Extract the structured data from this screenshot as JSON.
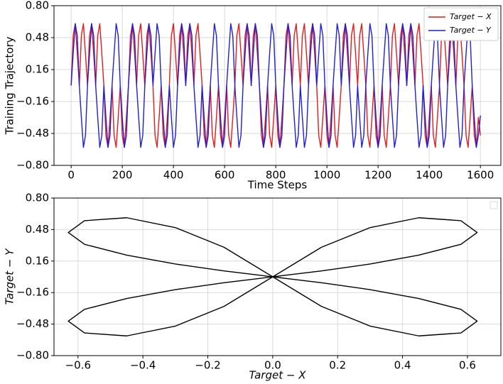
{
  "chart_data": [
    {
      "type": "line",
      "xlabel": "Time Steps",
      "ylabel": "Training Trajectory",
      "xlim": [
        -67,
        1680
      ],
      "ylim": [
        -0.8,
        0.8
      ],
      "xticks": [
        0,
        200,
        400,
        600,
        800,
        1000,
        1200,
        1400,
        1600
      ],
      "yticks": [
        {
          "value": -0.8,
          "label": "−0.80"
        },
        {
          "value": -0.48,
          "label": "−0.48"
        },
        {
          "value": -0.16,
          "label": "−0.16"
        },
        {
          "value": 0.16,
          "label": "0.16"
        },
        {
          "value": 0.48,
          "label": "0.48"
        },
        {
          "value": 0.8,
          "label": "0.80"
        }
      ],
      "grid": true,
      "legend": "upper right",
      "x": [
        0,
        8,
        16,
        24,
        32,
        40,
        48,
        56,
        64,
        72,
        80,
        88,
        96,
        104,
        112,
        120,
        128,
        136,
        144,
        152,
        160,
        168,
        176,
        184,
        192,
        200,
        208,
        216,
        224,
        232,
        240,
        248,
        256,
        264,
        272,
        280,
        288,
        296,
        304,
        312,
        320,
        328,
        336,
        344,
        352,
        360,
        368,
        376,
        384,
        392,
        400,
        408,
        416,
        424,
        432,
        440,
        448,
        456,
        464,
        472,
        480,
        488,
        496,
        504,
        512,
        520,
        528,
        536,
        544,
        552,
        560,
        568,
        576,
        584,
        592,
        600,
        608,
        616,
        624,
        632,
        640,
        648,
        656,
        664,
        672,
        680,
        688,
        696,
        704,
        712,
        720,
        728,
        736,
        744,
        752,
        760,
        768,
        776,
        784,
        792,
        800,
        808,
        816,
        824,
        832,
        840,
        848,
        856,
        864,
        872,
        880,
        888,
        896,
        904,
        912,
        920,
        928,
        936,
        944,
        952,
        960,
        968,
        976,
        984,
        992,
        1000,
        1008,
        1016,
        1024,
        1032,
        1040,
        1048,
        1056,
        1064,
        1072,
        1080,
        1088,
        1096,
        1104,
        1112,
        1120,
        1128,
        1136,
        1144,
        1152,
        1160,
        1168,
        1176,
        1184,
        1192,
        1200,
        1208,
        1216,
        1224,
        1232,
        1240,
        1248,
        1256,
        1264,
        1272,
        1280,
        1288,
        1296,
        1304,
        1312,
        1320,
        1328,
        1336,
        1344,
        1352,
        1360,
        1368,
        1376,
        1384,
        1392,
        1400,
        1408,
        1416,
        1424,
        1432,
        1440,
        1448,
        1456,
        1464,
        1472,
        1480,
        1488,
        1496,
        1504,
        1512,
        1520,
        1528,
        1536,
        1544,
        1552,
        1560,
        1568,
        1576,
        1584,
        1592,
        1600
      ],
      "series": [
        {
          "name": "Target − X",
          "color": "#e41a1c",
          "values": [
            0,
            0.5,
            0.62,
            0.32,
            0,
            0.5,
            0.62,
            0.32,
            0,
            0.5,
            0.62,
            0.32,
            0,
            0.5,
            0.62,
            0.32,
            0,
            -0.5,
            -0.62,
            -0.32,
            0,
            -0.5,
            -0.62,
            -0.32,
            0,
            -0.5,
            -0.62,
            -0.32,
            0,
            0.5,
            0.62,
            0.32,
            0,
            0.5,
            0.62,
            0.32,
            0,
            0.5,
            0.62,
            0.32,
            0,
            -0.5,
            -0.62,
            -0.32,
            0,
            -0.5,
            -0.62,
            -0.32,
            0,
            0.5,
            0.62,
            0.32,
            0,
            0.5,
            0.62,
            0.32,
            0,
            0.5,
            0.62,
            0.32,
            0,
            0.5,
            0.62,
            0.32,
            0,
            -0.5,
            -0.62,
            -0.32,
            0,
            -0.5,
            -0.62,
            -0.32,
            0,
            -0.5,
            -0.62,
            -0.32,
            0,
            -0.5,
            -0.62,
            -0.32,
            0,
            0.5,
            0.62,
            0.32,
            0,
            0.5,
            0.62,
            0.32,
            0,
            0.5,
            0.62,
            0.32,
            0,
            -0.5,
            -0.62,
            -0.32,
            0,
            -0.5,
            -0.62,
            -0.32,
            0,
            -0.5,
            -0.62,
            -0.32,
            0,
            0.5,
            0.62,
            0.32,
            0,
            0.5,
            0.62,
            0.32,
            0,
            0.5,
            0.62,
            0.32,
            0,
            0.5,
            0.62,
            0.32,
            0,
            -0.5,
            -0.62,
            -0.32,
            0,
            -0.5,
            -0.62,
            -0.32,
            0,
            -0.5,
            -0.62,
            -0.32,
            0,
            0.5,
            0.62,
            0.32,
            0,
            0.5,
            0.62,
            0.32,
            0,
            0.5,
            0.62,
            0.32,
            0,
            -0.5,
            -0.62,
            -0.32,
            0,
            -0.5,
            -0.62,
            -0.32,
            0,
            -0.5,
            -0.62,
            -0.32,
            0,
            0.5,
            0.62,
            0.32,
            0,
            0.5,
            0.62,
            0.32,
            0,
            0.5,
            0.62,
            0.32,
            0,
            0.5,
            0.62,
            0.32,
            0,
            -0.5,
            -0.62,
            -0.32,
            0,
            -0.5,
            -0.62,
            -0.32,
            0,
            0.5,
            0.62,
            0.32,
            0,
            0.5,
            0.62,
            0.32,
            0,
            0.5,
            0.62,
            0.32,
            0,
            -0.5,
            -0.62,
            -0.32,
            0,
            -0.5,
            -0.62,
            -0.32,
            -0.5
          ]
        },
        {
          "name": "Target − Y",
          "color": "#1f1fd6",
          "values": [
            0,
            0.32,
            0.62,
            0.5,
            0,
            -0.32,
            -0.62,
            -0.5,
            0,
            0.32,
            0.62,
            0.5,
            0,
            -0.32,
            -0.62,
            -0.5,
            0,
            -0.32,
            -0.62,
            -0.5,
            0,
            0.32,
            0.62,
            0.5,
            0,
            -0.32,
            -0.62,
            -0.5,
            0,
            0.32,
            0.62,
            0.5,
            0,
            -0.32,
            -0.62,
            -0.5,
            0,
            0.32,
            0.62,
            0.5,
            0,
            0.32,
            0.62,
            0.5,
            0,
            -0.32,
            -0.62,
            -0.5,
            0,
            -0.32,
            -0.62,
            -0.5,
            0,
            0.32,
            0.62,
            0.5,
            0,
            0.32,
            0.62,
            0.5,
            0,
            -0.32,
            -0.62,
            -0.5,
            0,
            -0.32,
            -0.62,
            -0.5,
            0,
            0.32,
            0.62,
            0.5,
            0,
            -0.32,
            -0.62,
            -0.5,
            0,
            0.32,
            0.62,
            0.5,
            0,
            -0.32,
            -0.62,
            -0.5,
            0,
            0.32,
            0.62,
            0.5,
            0,
            0.32,
            0.62,
            0.5,
            0,
            -0.32,
            -0.62,
            -0.5,
            0,
            0.32,
            0.62,
            0.5,
            0,
            -0.32,
            -0.62,
            -0.5,
            0,
            0.32,
            0.62,
            0.5,
            0,
            -0.32,
            -0.62,
            -0.5,
            0,
            -0.32,
            -0.62,
            -0.5,
            0,
            0.32,
            0.62,
            0.5,
            0,
            0.32,
            0.62,
            0.5,
            0,
            -0.32,
            -0.62,
            -0.5,
            0,
            0.32,
            0.62,
            0.5,
            0,
            0.32,
            0.62,
            0.5,
            0,
            -0.32,
            -0.62,
            -0.5,
            0,
            -0.32,
            -0.62,
            -0.5,
            0,
            0.32,
            0.62,
            0.5,
            0,
            -0.32,
            -0.62,
            -0.5,
            0,
            0.32,
            0.62,
            0.5,
            0,
            -0.32,
            -0.62,
            -0.5,
            0,
            0.32,
            0.62,
            0.5,
            0,
            0.32,
            0.62,
            0.5,
            0,
            -0.32,
            -0.62,
            -0.5,
            0,
            -0.32,
            -0.62,
            -0.5,
            0,
            0.32,
            0.62,
            0.5,
            0,
            -0.32,
            -0.62,
            -0.5,
            0,
            0.32,
            0.62,
            0.5,
            0,
            -0.32,
            -0.62,
            -0.5,
            0,
            0.32,
            0.62,
            0.5,
            0,
            -0.32,
            -0.62,
            -0.5,
            -0.3
          ]
        }
      ]
    },
    {
      "type": "line",
      "xlabel": "Target − X",
      "ylabel": "Target − Y",
      "xlim": [
        -0.674,
        0.703
      ],
      "ylim": [
        -0.8,
        0.8
      ],
      "xticks": [
        {
          "value": -0.6,
          "label": "−0.6"
        },
        {
          "value": -0.4,
          "label": "−0.4"
        },
        {
          "value": -0.2,
          "label": "−0.2"
        },
        {
          "value": 0,
          "label": "0.0"
        },
        0.2,
        0.4,
        0.6
      ],
      "yticks": [
        {
          "value": -0.8,
          "label": "−0.80"
        },
        {
          "value": -0.48,
          "label": "−0.48"
        },
        {
          "value": -0.16,
          "label": "−0.16"
        },
        {
          "value": 0.16,
          "label": "0.16"
        },
        {
          "value": 0.48,
          "label": "0.48"
        },
        {
          "value": 0.8,
          "label": "0.80"
        }
      ],
      "grid": true,
      "x": [
        0,
        0.05,
        0.15,
        0.3,
        0.45,
        0.58,
        0.63,
        0.58,
        0.45,
        0.3,
        0.15,
        0.05,
        0,
        0.05,
        0.15,
        0.3,
        0.45,
        0.58,
        0.63,
        0.58,
        0.45,
        0.3,
        0.15,
        0.05,
        0,
        -0.05,
        -0.15,
        -0.3,
        -0.45,
        -0.58,
        -0.63,
        -0.58,
        -0.45,
        -0.3,
        -0.15,
        -0.05,
        0,
        -0.05,
        -0.15,
        -0.3,
        -0.45,
        -0.58,
        -0.63,
        -0.58,
        -0.45,
        -0.3,
        -0.15,
        -0.05,
        0
      ],
      "series": [
        {
          "color": "#000000",
          "values": [
            0,
            0.1,
            0.3,
            0.5,
            0.6,
            0.57,
            0.45,
            0.33,
            0.22,
            0.13,
            0.06,
            0.02,
            0,
            -0.1,
            -0.3,
            -0.5,
            -0.6,
            -0.57,
            -0.45,
            -0.33,
            -0.22,
            -0.13,
            -0.06,
            -0.02,
            0,
            0.1,
            0.3,
            0.5,
            0.6,
            0.57,
            0.45,
            0.33,
            0.22,
            0.13,
            0.06,
            0.02,
            0,
            -0.1,
            -0.3,
            -0.5,
            -0.6,
            -0.57,
            -0.45,
            -0.33,
            -0.22,
            -0.13,
            -0.06,
            -0.02,
            0
          ]
        }
      ]
    }
  ]
}
